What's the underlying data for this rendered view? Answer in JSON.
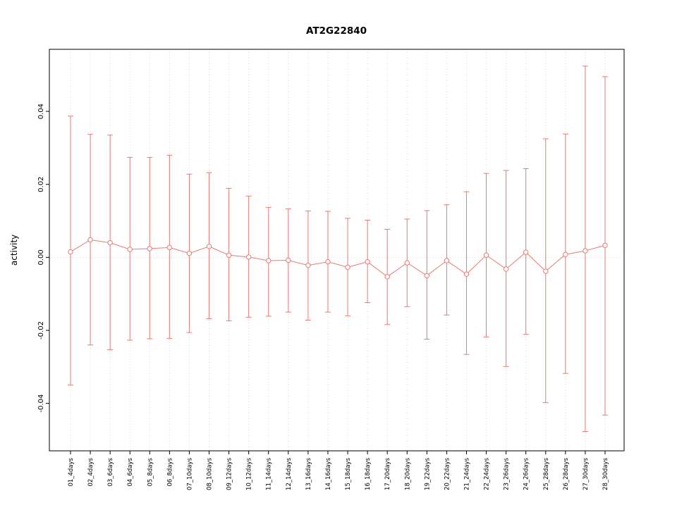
{
  "chart_data": {
    "type": "line",
    "title": "AT2G22840",
    "xlabel": "",
    "ylabel": "activity",
    "ylim": [
      -0.053,
      0.057
    ],
    "grid": {
      "vertical_per_category": true,
      "zero_line": true,
      "style": "dotted"
    },
    "legend_position": "none",
    "point_style": "open-circle",
    "error_bars": true,
    "colors": {
      "series": "#e87b72",
      "grid": "#d8d8d8",
      "axis": "#000000",
      "background": "#ffffff"
    },
    "yticks": {
      "values": [
        -0.04,
        -0.02,
        0,
        0.02,
        0.04
      ],
      "labels": [
        "-0.04",
        "-0.02",
        "0.00",
        "0.02",
        "0.04"
      ]
    },
    "categories": [
      "01_4days",
      "02_4days",
      "03_6days",
      "04_6days",
      "05_8days",
      "06_8days",
      "07_10days",
      "08_10days",
      "09_12days",
      "10_12days",
      "11_14days",
      "12_14days",
      "13_16days",
      "14_16days",
      "15_18days",
      "16_18days",
      "17_20days",
      "18_20days",
      "19_22days",
      "20_22days",
      "21_24days",
      "22_24days",
      "23_26days",
      "24_26days",
      "25_28days",
      "26_28days",
      "27_30days",
      "28_30days"
    ],
    "series": [
      {
        "name": "activity",
        "values": [
          0.0015,
          0.0048,
          0.004,
          0.0022,
          0.0024,
          0.0027,
          0.0011,
          0.003,
          0.0006,
          0.0001,
          -0.0009,
          -0.0008,
          -0.0022,
          -0.0012,
          -0.0027,
          -0.0012,
          -0.0053,
          -0.0015,
          -0.005,
          -0.0009,
          -0.0046,
          0.0006,
          -0.0032,
          0.0014,
          -0.0038,
          0.0008,
          0.0018,
          0.0033
        ],
        "upper": [
          0.0387,
          0.0337,
          0.0335,
          0.0274,
          0.0274,
          0.028,
          0.0228,
          0.0232,
          0.0189,
          0.0168,
          0.0137,
          0.0133,
          0.0127,
          0.0126,
          0.0107,
          0.0102,
          0.0077,
          0.0105,
          0.0128,
          0.0144,
          0.018,
          0.023,
          0.0238,
          0.0243,
          0.0325,
          0.0338,
          0.0524,
          0.0495
        ],
        "lower": [
          -0.035,
          -0.024,
          -0.0253,
          -0.0227,
          -0.0223,
          -0.0222,
          -0.0206,
          -0.0168,
          -0.0174,
          -0.0164,
          -0.0161,
          -0.015,
          -0.0172,
          -0.015,
          -0.016,
          -0.0124,
          -0.0184,
          -0.0135,
          -0.0224,
          -0.0158,
          -0.0266,
          -0.0218,
          -0.0299,
          -0.0211,
          -0.0398,
          -0.0318,
          -0.0477,
          -0.0432
        ]
      }
    ]
  }
}
